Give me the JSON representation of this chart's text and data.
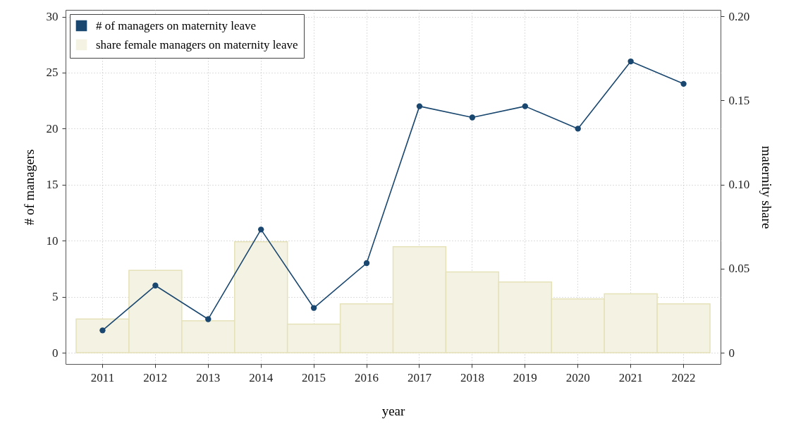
{
  "chart_data": {
    "type": "line",
    "categories": [
      "2011",
      "2012",
      "2013",
      "2014",
      "2015",
      "2016",
      "2017",
      "2018",
      "2019",
      "2020",
      "2021",
      "2022"
    ],
    "series": [
      {
        "name": "# of managers on maternity leave",
        "color": "#1a476f",
        "values": [
          2,
          6,
          3,
          11,
          4,
          8,
          22,
          21,
          22,
          20,
          26,
          24
        ]
      },
      {
        "name": "share female managers on maternity leave",
        "type": "bar",
        "axis": "y2",
        "color": "#f4f2e3",
        "values": [
          0.02,
          0.049,
          0.019,
          0.066,
          0.017,
          0.029,
          0.063,
          0.048,
          0.042,
          0.032,
          0.035,
          0.029
        ]
      }
    ],
    "xlabel": "year",
    "ylabel": "# of managers",
    "y2label": "maternity share",
    "ylim": [
      -1,
      30.6
    ],
    "yticks": [
      0,
      5,
      10,
      15,
      20,
      25,
      30
    ],
    "y2lim": [
      -0.0067,
      0.2038
    ],
    "y2ticks": [
      0,
      0.05,
      {
        "value": 0.1,
        "label": "0.10"
      },
      0.15,
      {
        "value": 0.2,
        "label": "0.20"
      }
    ],
    "grid": true,
    "legend": "top left",
    "marker": "circle",
    "line_style": "solid"
  }
}
